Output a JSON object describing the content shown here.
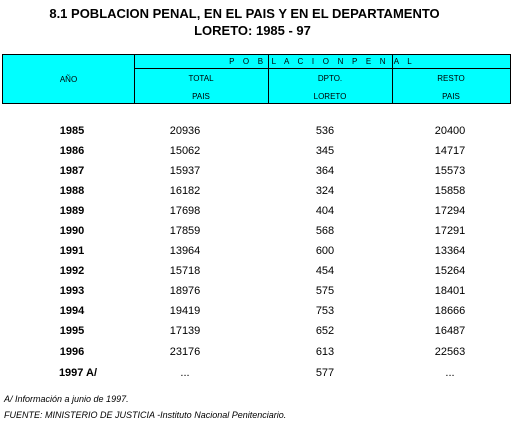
{
  "title_line1": "8.1  POBLACION PENAL, EN EL PAIS Y EN EL DEPARTAMENTO",
  "title_line2": "LORETO: 1985 - 97",
  "header": {
    "group": "P O B L A C I O N   P E N A L",
    "col_year": "AÑO",
    "col1_a": "TOTAL",
    "col1_b": "PAIS",
    "col2_a": "DPTO.",
    "col2_b": "LORETO",
    "col3_a": "RESTO",
    "col3_b": "PAIS"
  },
  "rows": [
    {
      "year": "1985",
      "total": "20936",
      "loreto": "536",
      "resto": "20400"
    },
    {
      "year": "1986",
      "total": "15062",
      "loreto": "345",
      "resto": "14717"
    },
    {
      "year": "1987",
      "total": "15937",
      "loreto": "364",
      "resto": "15573"
    },
    {
      "year": "1988",
      "total": "16182",
      "loreto": "324",
      "resto": "15858"
    },
    {
      "year": "1989",
      "total": "17698",
      "loreto": "404",
      "resto": "17294"
    },
    {
      "year": "1990",
      "total": "17859",
      "loreto": "568",
      "resto": "17291"
    },
    {
      "year": "1991",
      "total": "13964",
      "loreto": "600",
      "resto": "13364"
    },
    {
      "year": "1992",
      "total": "15718",
      "loreto": "454",
      "resto": "15264"
    },
    {
      "year": "1993",
      "total": "18976",
      "loreto": "575",
      "resto": "18401"
    },
    {
      "year": "1994",
      "total": "19419",
      "loreto": "753",
      "resto": "18666"
    },
    {
      "year": "1995",
      "total": "17139",
      "loreto": "652",
      "resto": "16487"
    },
    {
      "year": "1996",
      "total": "23176",
      "loreto": "613",
      "resto": "22563"
    },
    {
      "year": "1997 A/",
      "total": "...",
      "loreto": "577",
      "resto": "..."
    }
  ],
  "note_a": "A/  Información a junio de 1997.",
  "source": "FUENTE: MINISTERIO DE JUSTICIA -Instituto Nacional Penitenciario.",
  "colors": {
    "header_bg": "#00ffff"
  }
}
